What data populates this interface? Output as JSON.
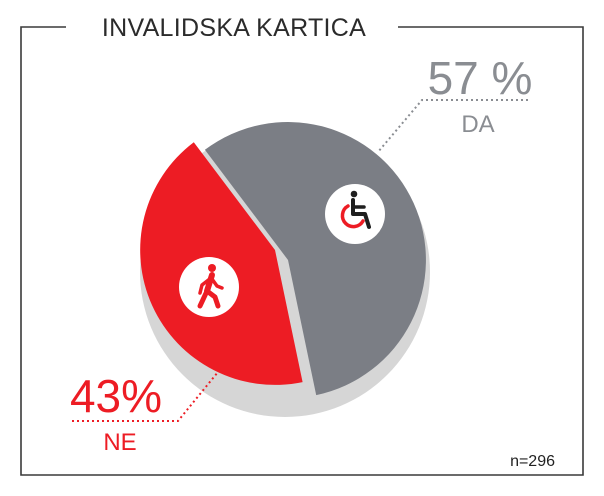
{
  "chart_data": {
    "type": "pie",
    "title": "INVALIDSKA KARTICA",
    "slices": [
      {
        "label": "DA",
        "value": 57,
        "display": "57 %",
        "color": "#7b7e85",
        "icon": "wheelchair-icon"
      },
      {
        "label": "NE",
        "value": 43,
        "display": "43%",
        "color": "#ed1c24",
        "icon": "walking-person-icon"
      }
    ],
    "footnote": "n=296",
    "legend": "none",
    "colors": {
      "shadow": "#d6d6d6",
      "frame": "#3a3a3a",
      "label_gray": "#8a8d92",
      "label_red": "#ed1c24"
    }
  }
}
